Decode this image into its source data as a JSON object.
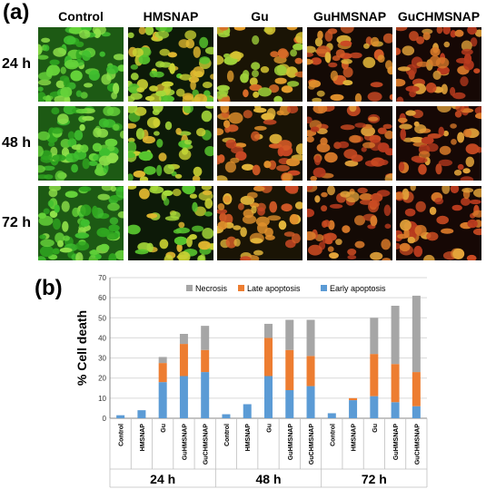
{
  "panel_a": {
    "label": "(a)",
    "columns": [
      "Control",
      "HMSNAP",
      "Gu",
      "GuHMSNAP",
      "GuCHMSNAP"
    ],
    "rows": [
      "24 h",
      "48 h",
      "72 h"
    ]
  },
  "panel_b": {
    "label": "(b)"
  },
  "colors": {
    "necrosis": "#a6a6a6",
    "late_apoptosis": "#ed7d31",
    "early_apoptosis": "#5b9bd5"
  },
  "chart_data": {
    "type": "bar",
    "stacked": true,
    "ylabel": "% Cell death",
    "ylim": [
      0,
      70
    ],
    "yticks": [
      0,
      10,
      20,
      30,
      40,
      50,
      60,
      70
    ],
    "legend_placement": "top",
    "categories": [
      "Control",
      "HMSNAP",
      "Gu",
      "GuHMSNAP",
      "GuCHMSNAP",
      "Control",
      "HMSNAP",
      "Gu",
      "GuHMSNAP",
      "GuCHMSNAP",
      "Control",
      "HMSNAP",
      "Gu",
      "GuHMSNAP",
      "GuCHMSNAP"
    ],
    "groups": [
      "24 h",
      "48 h",
      "72 h"
    ],
    "series": [
      {
        "name": "Early apoptosis",
        "values": [
          1.5,
          4,
          18,
          21,
          23,
          2,
          7,
          21,
          14,
          16,
          2.5,
          9,
          11,
          8,
          6
        ]
      },
      {
        "name": "Late apoptosis",
        "values": [
          0,
          0,
          9.5,
          16,
          11,
          0,
          0,
          19,
          20,
          15,
          0,
          1,
          21,
          19,
          17
        ]
      },
      {
        "name": "Necrosis",
        "values": [
          0,
          0,
          3,
          5,
          12,
          0,
          0,
          7,
          15,
          18,
          0,
          0,
          18,
          29,
          38
        ]
      }
    ]
  }
}
